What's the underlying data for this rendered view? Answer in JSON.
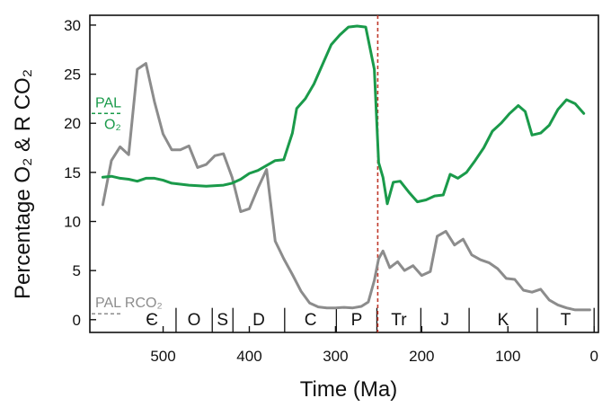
{
  "chart_data": {
    "type": "line",
    "xlabel": "Time (Ma)",
    "ylabel": "Percentage O₂ & R CO₂",
    "xlim": [
      585,
      -5
    ],
    "ylim": [
      -1.3,
      31
    ],
    "x_ticks": [
      500,
      400,
      300,
      200,
      100,
      0
    ],
    "y_ticks": [
      0,
      5,
      10,
      15,
      20,
      25,
      30
    ],
    "grid": false,
    "series": [
      {
        "name": "O₂",
        "color": "#1a9a4a",
        "points": [
          [
            570,
            14.5
          ],
          [
            560,
            14.6
          ],
          [
            550,
            14.4
          ],
          [
            540,
            14.3
          ],
          [
            530,
            14.1
          ],
          [
            520,
            14.4
          ],
          [
            510,
            14.4
          ],
          [
            500,
            14.2
          ],
          [
            490,
            13.9
          ],
          [
            470,
            13.7
          ],
          [
            450,
            13.6
          ],
          [
            430,
            13.7
          ],
          [
            420,
            13.9
          ],
          [
            410,
            14.3
          ],
          [
            400,
            14.9
          ],
          [
            390,
            15.2
          ],
          [
            380,
            15.7
          ],
          [
            370,
            16.2
          ],
          [
            360,
            16.3
          ],
          [
            350,
            19.0
          ],
          [
            345,
            21.5
          ],
          [
            335,
            22.5
          ],
          [
            325,
            24.0
          ],
          [
            315,
            26.0
          ],
          [
            305,
            28.0
          ],
          [
            295,
            29.0
          ],
          [
            285,
            29.8
          ],
          [
            275,
            29.9
          ],
          [
            265,
            29.8
          ],
          [
            255,
            25.5
          ],
          [
            250,
            16.0
          ],
          [
            245,
            14.5
          ],
          [
            240,
            11.8
          ],
          [
            233,
            14.0
          ],
          [
            225,
            14.1
          ],
          [
            215,
            13.0
          ],
          [
            205,
            12.0
          ],
          [
            195,
            12.2
          ],
          [
            185,
            12.6
          ],
          [
            175,
            12.7
          ],
          [
            167,
            14.8
          ],
          [
            158,
            14.4
          ],
          [
            148,
            15.0
          ],
          [
            138,
            16.2
          ],
          [
            128,
            17.5
          ],
          [
            118,
            19.2
          ],
          [
            108,
            20.0
          ],
          [
            98,
            21.0
          ],
          [
            88,
            21.8
          ],
          [
            80,
            21.2
          ],
          [
            72,
            18.8
          ],
          [
            62,
            19.0
          ],
          [
            52,
            19.8
          ],
          [
            42,
            21.4
          ],
          [
            32,
            22.4
          ],
          [
            22,
            22.0
          ],
          [
            12,
            21.0
          ]
        ]
      },
      {
        "name": "R CO₂",
        "color": "#8c8c8c",
        "points": [
          [
            570,
            11.7
          ],
          [
            560,
            16.2
          ],
          [
            550,
            17.6
          ],
          [
            540,
            16.8
          ],
          [
            530,
            25.5
          ],
          [
            520,
            26.1
          ],
          [
            510,
            22.2
          ],
          [
            500,
            18.9
          ],
          [
            490,
            17.3
          ],
          [
            480,
            17.3
          ],
          [
            470,
            17.7
          ],
          [
            460,
            15.5
          ],
          [
            450,
            15.8
          ],
          [
            440,
            16.7
          ],
          [
            430,
            16.9
          ],
          [
            420,
            14.5
          ],
          [
            410,
            11.0
          ],
          [
            400,
            11.3
          ],
          [
            390,
            13.4
          ],
          [
            380,
            15.3
          ],
          [
            370,
            8.0
          ],
          [
            360,
            6.2
          ],
          [
            350,
            4.6
          ],
          [
            340,
            2.9
          ],
          [
            330,
            1.7
          ],
          [
            320,
            1.3
          ],
          [
            310,
            1.2
          ],
          [
            300,
            1.2
          ],
          [
            290,
            1.25
          ],
          [
            280,
            1.2
          ],
          [
            270,
            1.35
          ],
          [
            262,
            1.8
          ],
          [
            255,
            4.0
          ],
          [
            250,
            6.2
          ],
          [
            245,
            7.0
          ],
          [
            237,
            5.3
          ],
          [
            228,
            5.9
          ],
          [
            220,
            5.0
          ],
          [
            210,
            5.5
          ],
          [
            200,
            4.5
          ],
          [
            190,
            4.9
          ],
          [
            182,
            8.5
          ],
          [
            172,
            9.0
          ],
          [
            162,
            7.6
          ],
          [
            152,
            8.2
          ],
          [
            142,
            6.6
          ],
          [
            132,
            6.1
          ],
          [
            122,
            5.8
          ],
          [
            112,
            5.2
          ],
          [
            102,
            4.2
          ],
          [
            92,
            4.1
          ],
          [
            82,
            3.0
          ],
          [
            72,
            2.8
          ],
          [
            62,
            3.1
          ],
          [
            52,
            2.0
          ],
          [
            42,
            1.5
          ],
          [
            32,
            1.2
          ],
          [
            22,
            1.0
          ],
          [
            12,
            1.0
          ],
          [
            5,
            1.0
          ]
        ]
      }
    ],
    "reference_line": {
      "x": 251,
      "color": "#c0392b",
      "style": "dashed"
    },
    "annotations": {
      "pal_o2": {
        "text_top": "PAL",
        "text_bottom": "O₂",
        "value": 21,
        "color": "#1a9a4a"
      },
      "pal_co2": {
        "text": "PAL RCO₂",
        "value": 0.6,
        "color": "#8c8c8c"
      }
    },
    "periods": [
      {
        "label": "Є",
        "start": 541,
        "end": 485
      },
      {
        "label": "O",
        "start": 485,
        "end": 443
      },
      {
        "label": "S",
        "start": 443,
        "end": 419
      },
      {
        "label": "D",
        "start": 419,
        "end": 359
      },
      {
        "label": "C",
        "start": 359,
        "end": 299
      },
      {
        "label": "P",
        "start": 299,
        "end": 252
      },
      {
        "label": "Tr",
        "start": 252,
        "end": 201
      },
      {
        "label": "J",
        "start": 201,
        "end": 145
      },
      {
        "label": "K",
        "start": 145,
        "end": 66
      },
      {
        "label": "T",
        "start": 66,
        "end": 0
      }
    ]
  }
}
